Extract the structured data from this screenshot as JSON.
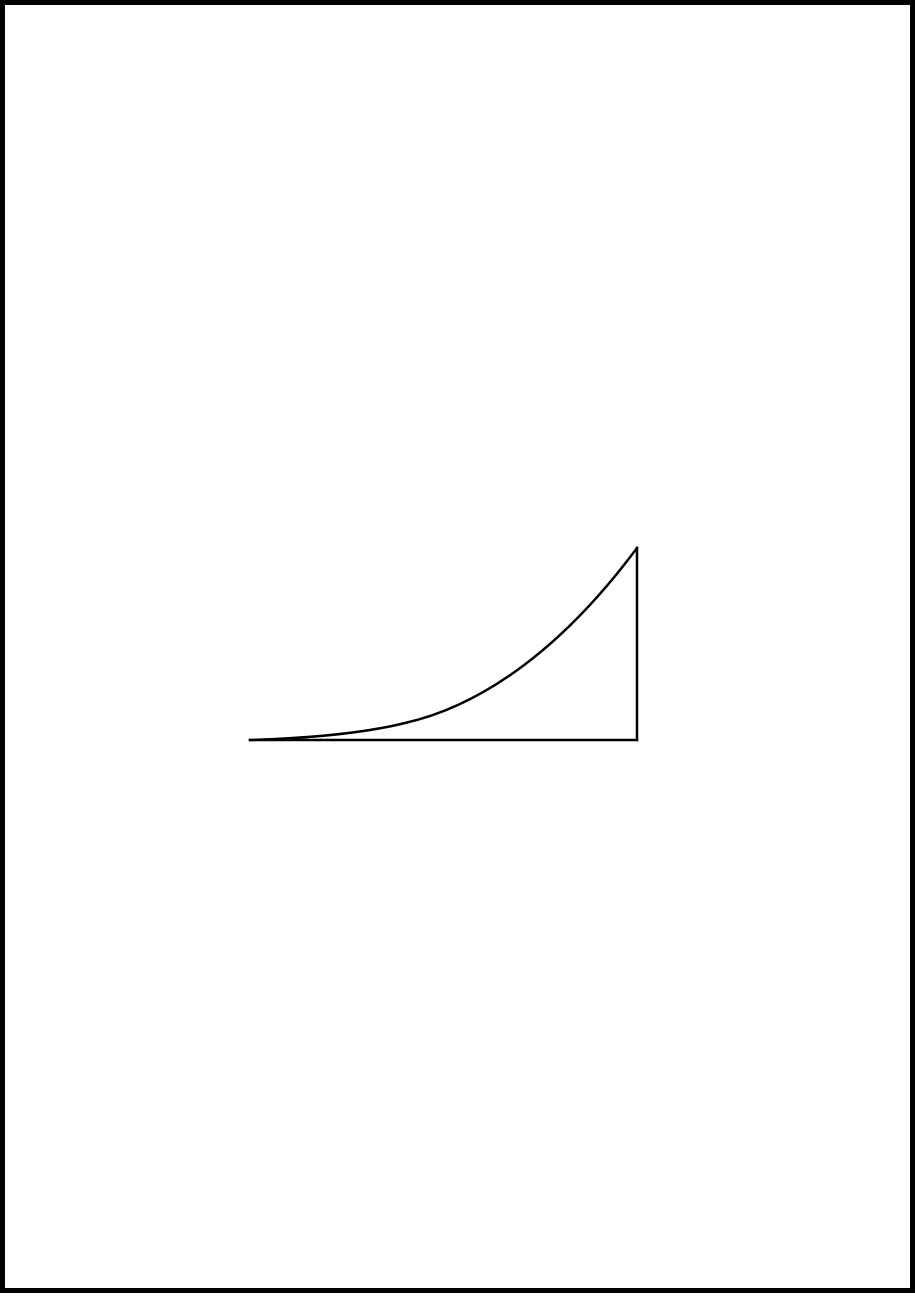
{
  "diagram": {
    "stroke_color": "#000000",
    "background_color": "#ffffff",
    "shapes": [
      {
        "name": "curved-edge",
        "kind": "curve"
      },
      {
        "name": "vertical-edge",
        "kind": "line"
      },
      {
        "name": "base-edge",
        "kind": "line"
      }
    ]
  }
}
